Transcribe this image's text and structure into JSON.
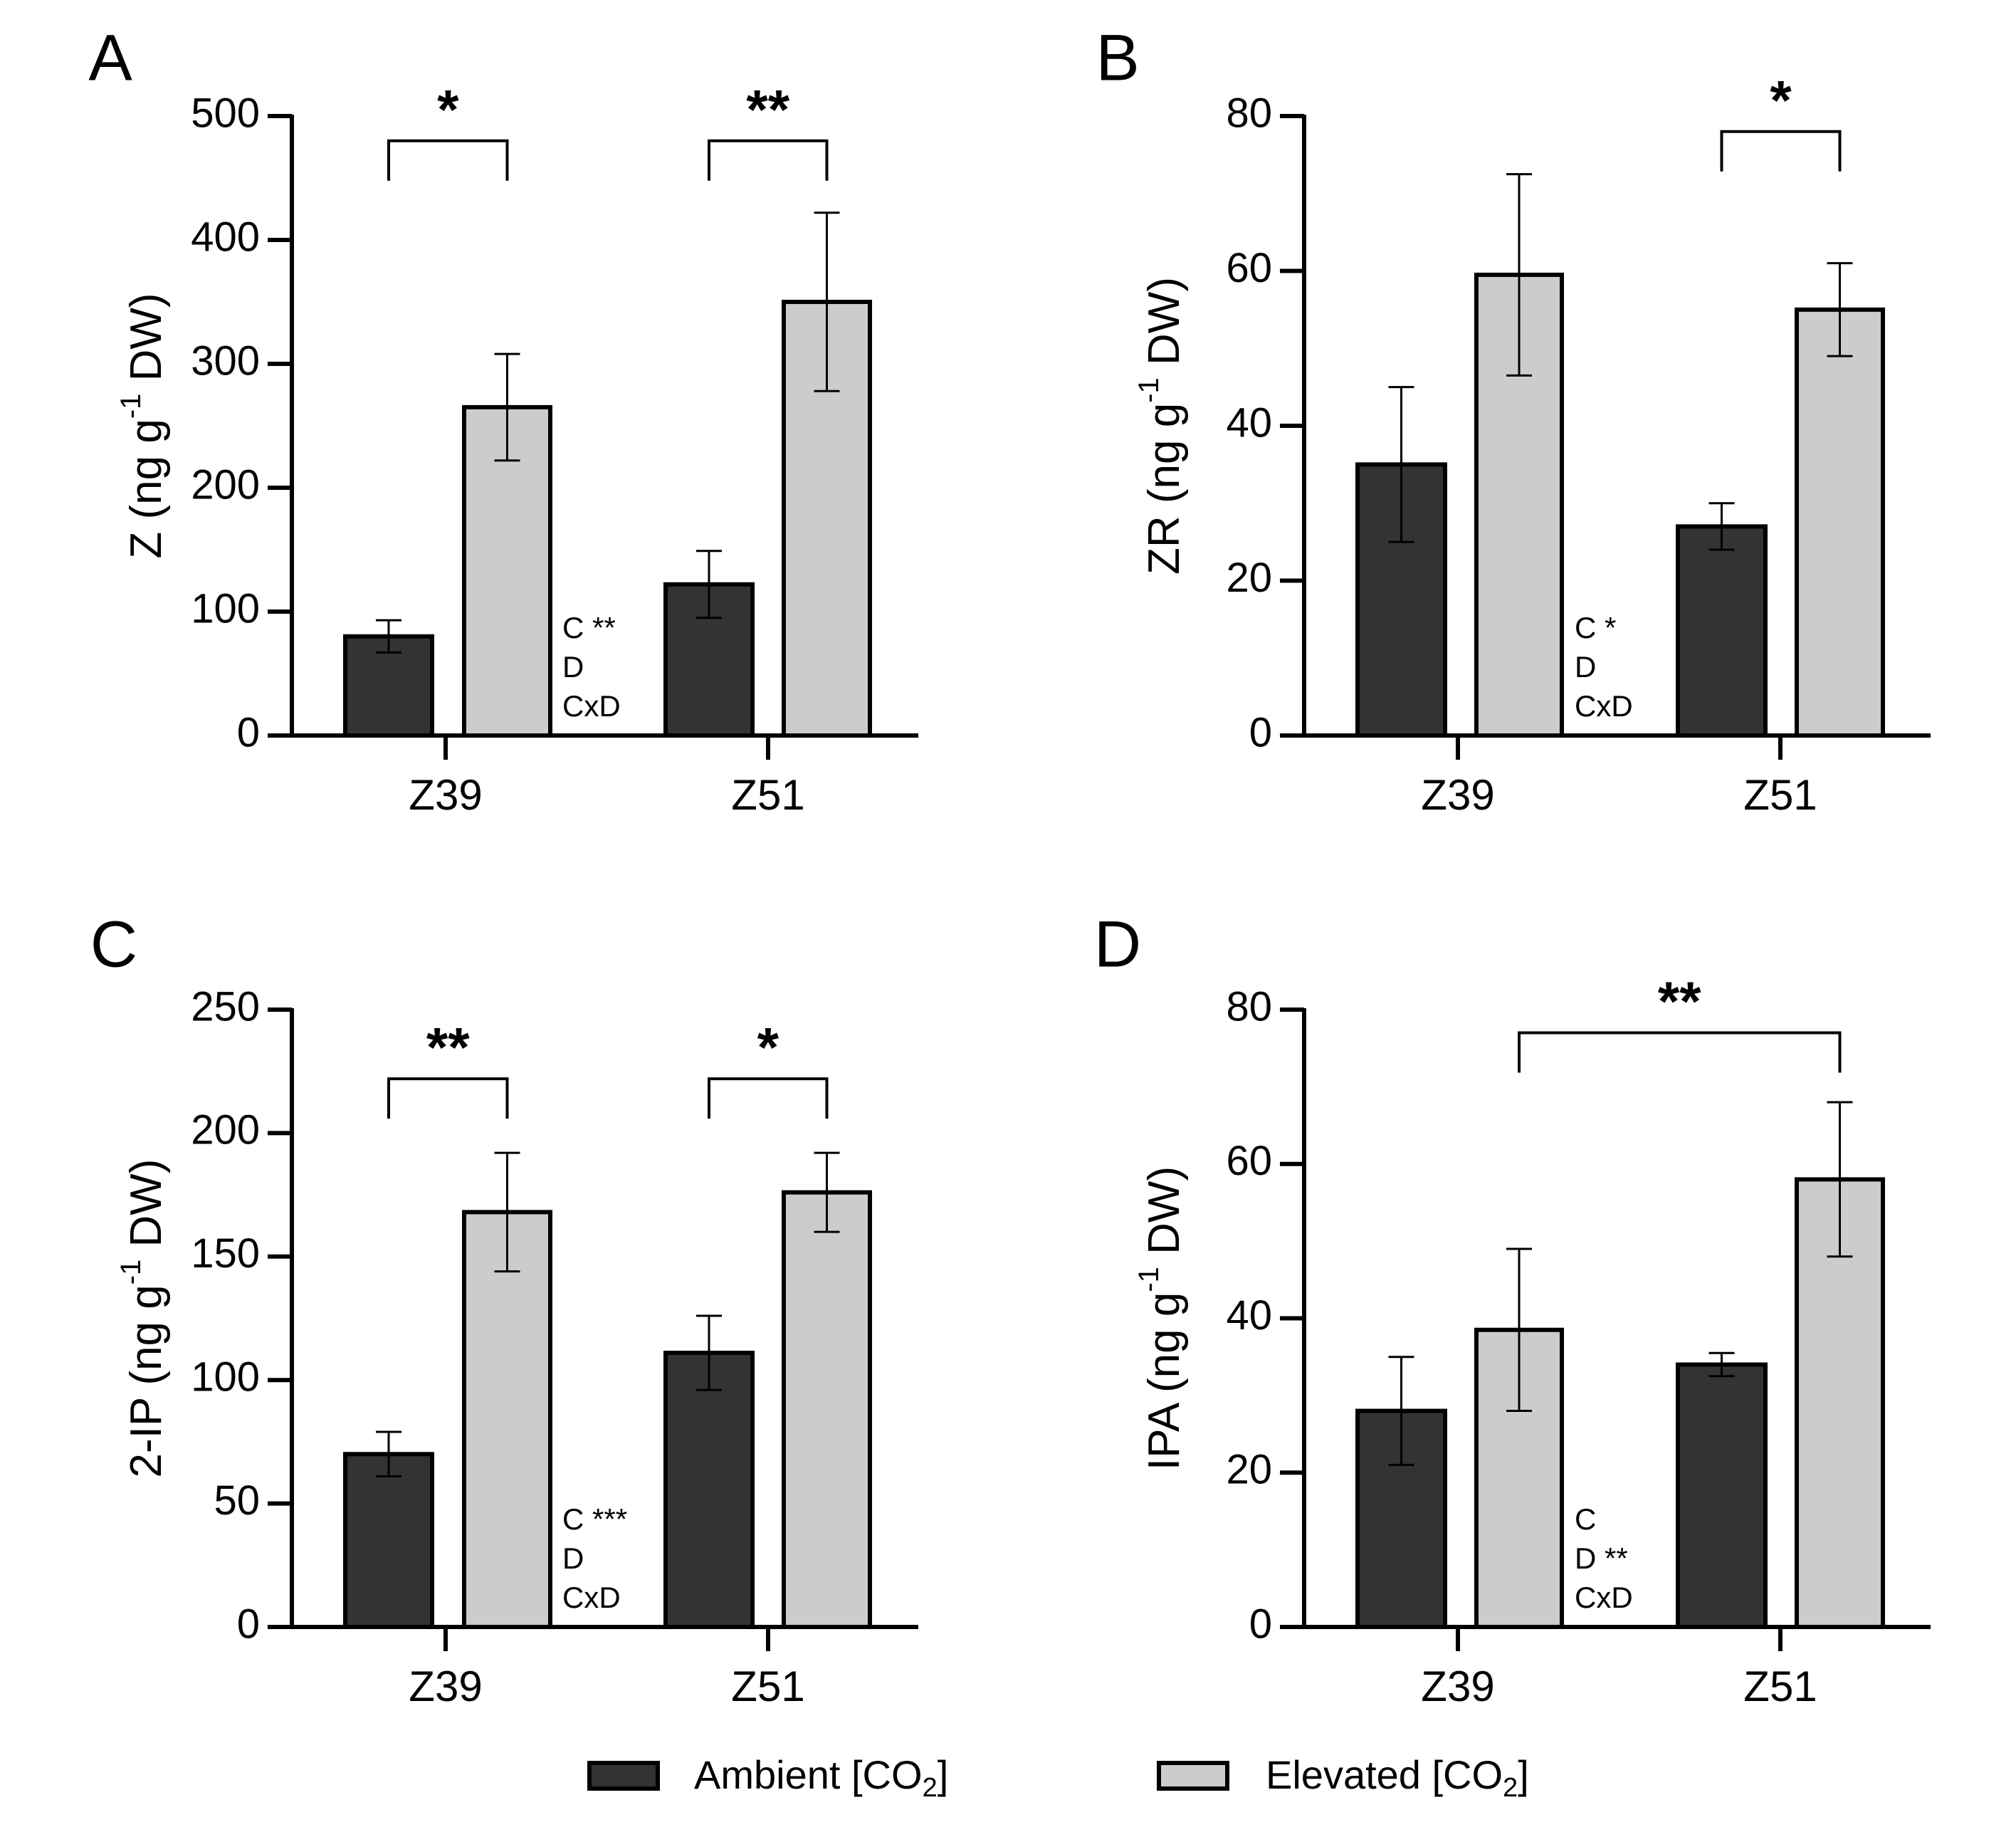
{
  "colors": {
    "ambient": "#333333",
    "elevated": "#cccccc",
    "axis": "#000000"
  },
  "legend": {
    "ambient": {
      "text": "Ambient [CO",
      "sub": "2",
      "close": "]"
    },
    "elevated": {
      "text": "Elevated [CO",
      "sub": "2",
      "close": "]"
    }
  },
  "chart_data": [
    {
      "type": "bar",
      "panel": "A",
      "ylabel": {
        "main": "Z (ng g",
        "sup": "-1",
        "tail": " DW)"
      },
      "ylim": [
        0,
        500
      ],
      "yticks": [
        0,
        100,
        200,
        300,
        400,
        500
      ],
      "categories": [
        "Z39",
        "Z51"
      ],
      "series": [
        {
          "name": "Ambient [CO2]",
          "values": [
            80,
            122
          ],
          "errors": [
            13,
            27
          ]
        },
        {
          "name": "Elevated [CO2]",
          "values": [
            265,
            350
          ],
          "errors": [
            43,
            72
          ]
        }
      ],
      "brackets": [
        {
          "from": [
            0,
            0
          ],
          "to": [
            0,
            1
          ],
          "y": 480,
          "label": "*"
        },
        {
          "from": [
            1,
            0
          ],
          "to": [
            1,
            1
          ],
          "y": 480,
          "label": "**"
        }
      ],
      "anova": [
        "C **",
        "D",
        "CxD"
      ]
    },
    {
      "type": "bar",
      "panel": "B",
      "ylabel": {
        "main": "ZR (ng g",
        "sup": "-1",
        "tail": " DW)"
      },
      "ylim": [
        0,
        80
      ],
      "yticks": [
        0,
        20,
        40,
        60,
        80
      ],
      "categories": [
        "Z39",
        "Z51"
      ],
      "series": [
        {
          "name": "Ambient [CO2]",
          "values": [
            35,
            27
          ],
          "errors": [
            10,
            3
          ]
        },
        {
          "name": "Elevated [CO2]",
          "values": [
            59.5,
            55
          ],
          "errors": [
            13,
            6
          ]
        }
      ],
      "brackets": [
        {
          "from": [
            1,
            0
          ],
          "to": [
            1,
            1
          ],
          "y": 78,
          "label": "*"
        }
      ],
      "anova": [
        "C *",
        "D",
        "CxD"
      ]
    },
    {
      "type": "bar",
      "panel": "C",
      "ylabel": {
        "main": "2-IP (ng g",
        "sup": "-1",
        "tail": " DW)"
      },
      "ylim": [
        0,
        250
      ],
      "yticks": [
        0,
        50,
        100,
        150,
        200,
        250
      ],
      "categories": [
        "Z39",
        "Z51"
      ],
      "series": [
        {
          "name": "Ambient [CO2]",
          "values": [
            70,
            111
          ],
          "errors": [
            9,
            15
          ]
        },
        {
          "name": "Elevated [CO2]",
          "values": [
            168,
            176
          ],
          "errors": [
            24,
            16
          ]
        }
      ],
      "brackets": [
        {
          "from": [
            0,
            0
          ],
          "to": [
            0,
            1
          ],
          "y": 222,
          "label": "**"
        },
        {
          "from": [
            1,
            0
          ],
          "to": [
            1,
            1
          ],
          "y": 222,
          "label": "*"
        }
      ],
      "anova": [
        "C ***",
        "D",
        "CxD"
      ]
    },
    {
      "type": "bar",
      "panel": "D",
      "ylabel": {
        "main": "IPA (ng g",
        "sup": "-1",
        "tail": " DW)"
      },
      "ylim": [
        0,
        80
      ],
      "yticks": [
        0,
        20,
        40,
        60,
        80
      ],
      "categories": [
        "Z39",
        "Z51"
      ],
      "series": [
        {
          "name": "Ambient [CO2]",
          "values": [
            28,
            34
          ],
          "errors": [
            7,
            1.5
          ]
        },
        {
          "name": "Elevated [CO2]",
          "values": [
            38.5,
            58
          ],
          "errors": [
            10.5,
            10
          ]
        }
      ],
      "brackets": [
        {
          "from": [
            0,
            1
          ],
          "to": [
            1,
            1
          ],
          "y": 77,
          "label": "**"
        }
      ],
      "anova": [
        "C",
        "D **",
        "CxD"
      ]
    }
  ]
}
